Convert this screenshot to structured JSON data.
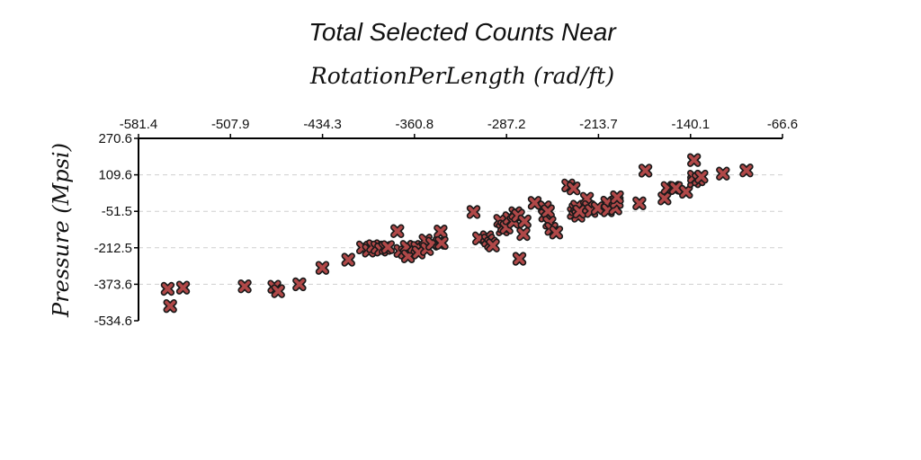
{
  "chart_data": {
    "type": "scatter",
    "title": "Total Selected Counts Near",
    "subtitle": "RotationPerLength (rad/ft)",
    "xlabel": "",
    "ylabel": "Pressure (Mpsi)",
    "xlim": [
      -581.4,
      -66.6
    ],
    "ylim": [
      -534.6,
      270.6
    ],
    "x_ticks": [
      "-581.4",
      "-507.9",
      "-434.3",
      "-360.8",
      "-287.2",
      "-213.7",
      "-140.1",
      "-66.6"
    ],
    "y_ticks": [
      "270.6",
      "109.6",
      "-51.5",
      "-212.5",
      "-373.6",
      "-534.6"
    ],
    "x_axis_position": "top",
    "grid": "horizontal dashed",
    "marker_color": "#b04848",
    "marker_edge_color": "#1a1a1a",
    "marker": "x-cross",
    "points": [
      [
        -558.1,
        -393.8
      ],
      [
        -556.1,
        -469.8
      ],
      [
        -545.8,
        -388.5
      ],
      [
        -496.5,
        -382.8
      ],
      [
        -472.8,
        -384.5
      ],
      [
        -469.8,
        -404.2
      ],
      [
        -452.8,
        -373.8
      ],
      [
        -434.4,
        -301.2
      ],
      [
        -413.7,
        -265.2
      ],
      [
        -401.9,
        -211.2
      ],
      [
        -397.2,
        -224.8
      ],
      [
        -393.8,
        -205.5
      ],
      [
        -390.4,
        -211.2
      ],
      [
        -387.4,
        -220.5
      ],
      [
        -383.9,
        -213.2
      ],
      [
        -382.0,
        -209.4
      ],
      [
        -374.5,
        -138.9
      ],
      [
        -372.0,
        -226.5
      ],
      [
        -368.4,
        -233.2
      ],
      [
        -366.9,
        -208.6
      ],
      [
        -366.0,
        -250.1
      ],
      [
        -361.0,
        -208.6
      ],
      [
        -358.4,
        -213.0
      ],
      [
        -357.5,
        -233.4
      ],
      [
        -351.9,
        -180.6
      ],
      [
        -350.8,
        -217.8
      ],
      [
        -346.5,
        -194.5
      ],
      [
        -340.7,
        -190.2
      ],
      [
        -339.9,
        -140.7
      ],
      [
        -339.1,
        -191.2
      ],
      [
        -313.6,
        -54.6
      ],
      [
        -309.1,
        -171.2
      ],
      [
        -302.8,
        -166.0
      ],
      [
        -301.9,
        -180.3
      ],
      [
        -299.6,
        -194.2
      ],
      [
        -298.1,
        -202.4
      ],
      [
        -292.2,
        -93.4
      ],
      [
        -290.2,
        -131.4
      ],
      [
        -289.0,
        -118.1
      ],
      [
        -287.2,
        -123.0
      ],
      [
        -284.9,
        -82.1
      ],
      [
        -281.5,
        -97.5
      ],
      [
        -280.1,
        -59.8
      ],
      [
        -277.9,
        -71.0
      ],
      [
        -276.9,
        -261.2
      ],
      [
        -273.7,
        -151.8
      ],
      [
        -272.8,
        -96.2
      ],
      [
        -264.7,
        -14.3
      ],
      [
        -256.6,
        -34.2
      ],
      [
        -256.2,
        -70.3
      ],
      [
        -254.1,
        -51.4
      ],
      [
        -252.9,
        -101.7
      ],
      [
        -251.3,
        -128.9
      ],
      [
        -247.5,
        -145.0
      ],
      [
        -237.8,
        62.8
      ],
      [
        -233.6,
        49.6
      ],
      [
        -233.4,
        -58.2
      ],
      [
        -232.0,
        -41.7
      ],
      [
        -230.7,
        -31.2
      ],
      [
        -229.8,
        -70.9
      ],
      [
        -228.9,
        -52.7
      ],
      [
        -222.9,
        3.8
      ],
      [
        -221.4,
        -32.9
      ],
      [
        -219.4,
        -50.1
      ],
      [
        -214.3,
        -38.3
      ],
      [
        -206.6,
        -13.4
      ],
      [
        -206.2,
        -46.9
      ],
      [
        -200.2,
        -38.4
      ],
      [
        -199.1,
        -10.1
      ],
      [
        -198.9,
        10.4
      ],
      [
        -181.0,
        -16.3
      ],
      [
        -176.2,
        128.2
      ],
      [
        -160.9,
        5.5
      ],
      [
        -158.4,
        51.4
      ],
      [
        -153.1,
        52.7
      ],
      [
        -151.8,
        51.1
      ],
      [
        -143.7,
        34.9
      ],
      [
        -137.3,
        174.6
      ],
      [
        -137.3,
        81.4
      ],
      [
        -137.3,
        101.3
      ],
      [
        -133.7,
        89.8
      ],
      [
        -131.4,
        101.6
      ],
      [
        -114.2,
        114.9
      ],
      [
        -95.4,
        128.9
      ]
    ]
  }
}
